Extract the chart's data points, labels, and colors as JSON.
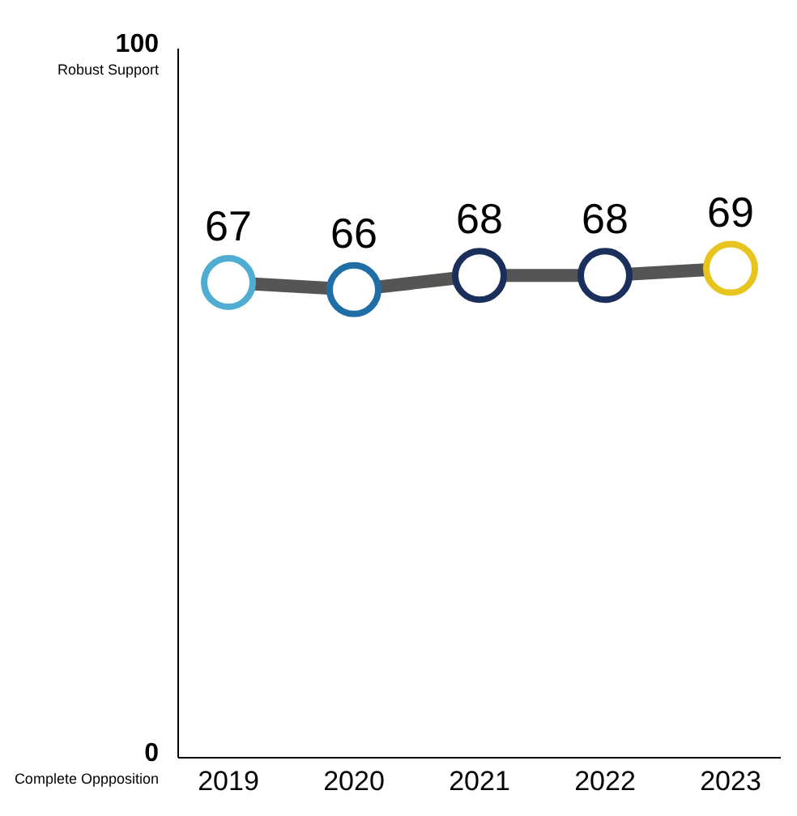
{
  "chart_data": {
    "type": "line",
    "categories": [
      "2019",
      "2020",
      "2021",
      "2022",
      "2023"
    ],
    "series": [
      {
        "color": "#555555",
        "colors": [
          "#4fadd2",
          "#1f6ea6",
          "#1b2f5c",
          "#1b2f5c",
          "#e8c51e"
        ],
        "values": [
          67,
          66,
          68,
          68,
          69
        ]
      }
    ],
    "ylim": [
      0,
      100
    ],
    "yticks": [
      0,
      100
    ],
    "data_labels": true,
    "marker": "circle",
    "annotations": [
      "Complete Oppposition",
      "Robust Support"
    ]
  }
}
